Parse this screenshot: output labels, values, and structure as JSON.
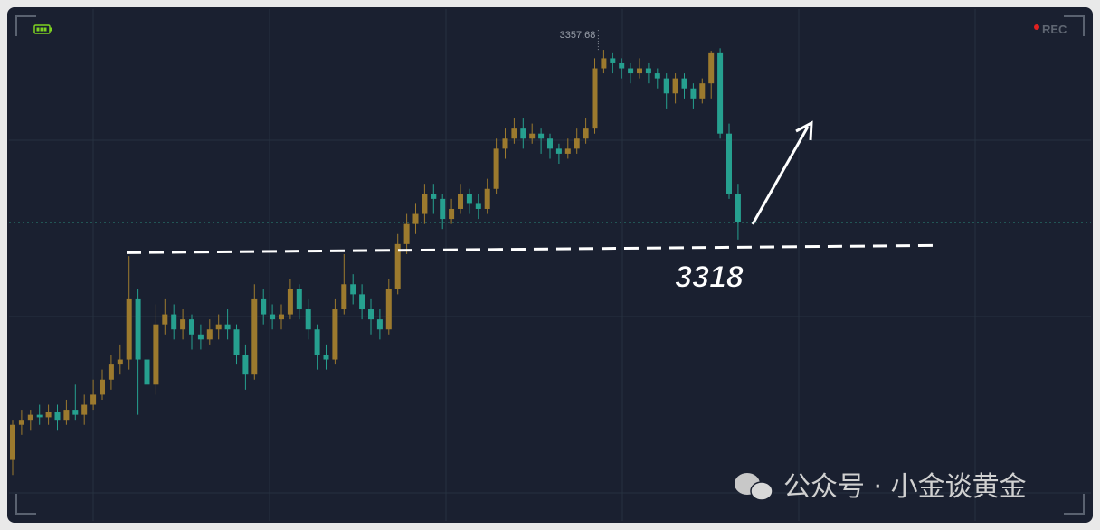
{
  "chart_data": {
    "type": "candlestick",
    "ohlc": [
      [
        3276,
        3284,
        3273,
        3283
      ],
      [
        3283,
        3286,
        3281,
        3284
      ],
      [
        3284,
        3286,
        3282,
        3285
      ],
      [
        3285,
        3287,
        3283,
        3284.5
      ],
      [
        3284.5,
        3287,
        3283,
        3285.5
      ],
      [
        3285.5,
        3287,
        3282,
        3284
      ],
      [
        3284,
        3288,
        3283,
        3286
      ],
      [
        3286,
        3291,
        3284,
        3285
      ],
      [
        3285,
        3289,
        3283,
        3287
      ],
      [
        3287,
        3292,
        3286,
        3289
      ],
      [
        3289,
        3294,
        3288,
        3292
      ],
      [
        3292,
        3297,
        3290,
        3295
      ],
      [
        3295,
        3299,
        3293,
        3296
      ],
      [
        3296,
        3316.6,
        3294,
        3308
      ],
      [
        3308,
        3310,
        3285,
        3296
      ],
      [
        3296,
        3299,
        3288,
        3291
      ],
      [
        3291,
        3307,
        3289,
        3303
      ],
      [
        3303,
        3308,
        3301,
        3305
      ],
      [
        3305,
        3307,
        3300,
        3302
      ],
      [
        3302,
        3306,
        3300,
        3304
      ],
      [
        3304,
        3305,
        3298,
        3301
      ],
      [
        3301,
        3303,
        3298,
        3300
      ],
      [
        3300,
        3304,
        3299,
        3302
      ],
      [
        3302,
        3305,
        3300,
        3303
      ],
      [
        3303,
        3306,
        3300,
        3302
      ],
      [
        3302,
        3303,
        3295,
        3297
      ],
      [
        3297,
        3299,
        3290,
        3293
      ],
      [
        3293,
        3311,
        3292,
        3308
      ],
      [
        3308,
        3310,
        3303,
        3305
      ],
      [
        3305,
        3307,
        3302,
        3304
      ],
      [
        3304,
        3307,
        3302,
        3305
      ],
      [
        3305,
        3312,
        3304,
        3310
      ],
      [
        3310,
        3311,
        3304,
        3306
      ],
      [
        3306,
        3308,
        3300,
        3302
      ],
      [
        3302,
        3303,
        3294,
        3297
      ],
      [
        3297,
        3299,
        3294,
        3296
      ],
      [
        3296,
        3308,
        3295,
        3306
      ],
      [
        3306,
        3317,
        3305,
        3311
      ],
      [
        3311,
        3313,
        3307,
        3309
      ],
      [
        3309,
        3311,
        3304,
        3306
      ],
      [
        3306,
        3308,
        3301,
        3304
      ],
      [
        3304,
        3306,
        3300,
        3302
      ],
      [
        3302,
        3312,
        3301,
        3310
      ],
      [
        3310,
        3321,
        3309,
        3319
      ],
      [
        3319,
        3325,
        3317,
        3323
      ],
      [
        3323,
        3327,
        3321,
        3325
      ],
      [
        3325,
        3331,
        3323,
        3329
      ],
      [
        3329,
        3331,
        3325,
        3328
      ],
      [
        3328,
        3329,
        3322,
        3324
      ],
      [
        3324,
        3328,
        3323,
        3326
      ],
      [
        3326,
        3331,
        3325,
        3329
      ],
      [
        3329,
        3330,
        3325,
        3327
      ],
      [
        3327,
        3329,
        3324,
        3326
      ],
      [
        3326,
        3332,
        3325,
        3330
      ],
      [
        3330,
        3340,
        3329,
        3338
      ],
      [
        3338,
        3342,
        3336,
        3340
      ],
      [
        3340,
        3344,
        3339,
        3342
      ],
      [
        3342,
        3344,
        3338,
        3340
      ],
      [
        3340,
        3343,
        3339,
        3341
      ],
      [
        3341,
        3342,
        3337,
        3340
      ],
      [
        3340,
        3341,
        3336,
        3338
      ],
      [
        3338,
        3339,
        3335,
        3337
      ],
      [
        3337,
        3340,
        3336,
        3338
      ],
      [
        3338,
        3342,
        3337,
        3340
      ],
      [
        3340,
        3344,
        3339,
        3342
      ],
      [
        3342,
        3356,
        3341,
        3354
      ],
      [
        3354,
        3357.68,
        3353,
        3356
      ],
      [
        3356,
        3357,
        3353,
        3355
      ],
      [
        3355,
        3356,
        3352,
        3354
      ],
      [
        3354,
        3355,
        3351,
        3353
      ],
      [
        3353,
        3356,
        3352,
        3354
      ],
      [
        3354,
        3355,
        3351,
        3353
      ],
      [
        3353,
        3354,
        3350,
        3352
      ],
      [
        3352,
        3353,
        3346,
        3349
      ],
      [
        3349,
        3353,
        3347,
        3352
      ],
      [
        3352,
        3353,
        3348,
        3350
      ],
      [
        3350,
        3351,
        3346,
        3348
      ],
      [
        3348,
        3352,
        3347,
        3351
      ],
      [
        3351,
        3357.5,
        3348,
        3357
      ],
      [
        3357,
        3358,
        3340,
        3341
      ],
      [
        3341,
        3343,
        3328,
        3329
      ],
      [
        3329,
        3331,
        3319.9,
        3323.3
      ]
    ],
    "ylim": [
      3263.5,
      3365.8
    ],
    "up_color": "#9c7a2e",
    "down_color": "#26a08f",
    "high_label": 3357.68,
    "support_level": 3318,
    "last_price_line": true
  },
  "badge": "REC",
  "watermark": "公众号 · 小金谈黄金"
}
